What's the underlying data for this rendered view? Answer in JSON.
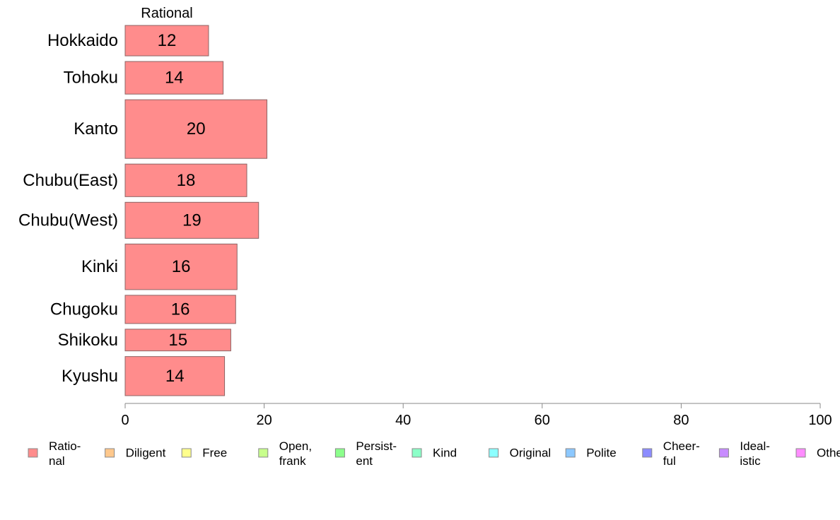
{
  "chart_data": {
    "type": "bar",
    "orientation": "horizontal",
    "column_header": "Rational",
    "categories": [
      "Hokkaido",
      "Tohoku",
      "Kanto",
      "Chubu(East)",
      "Chubu(West)",
      "Kinki",
      "Chugoku",
      "Shikoku",
      "Kyushu"
    ],
    "series": [
      {
        "name": "Rational",
        "values": [
          12,
          14,
          20,
          18,
          19,
          16,
          16,
          15,
          14
        ]
      }
    ],
    "row_weights": [
      0.7,
      0.75,
      1.35,
      0.75,
      0.83,
      1.05,
      0.65,
      0.5,
      0.9
    ],
    "display_values": [
      12.0,
      14.1,
      20.4,
      17.5,
      19.2,
      16.1,
      15.9,
      15.2,
      14.3
    ],
    "xlim": [
      0,
      100
    ],
    "x_ticks": [
      0,
      20,
      40,
      60,
      80,
      100
    ],
    "xlabel": "",
    "ylabel": "",
    "grid": false,
    "legend_position": "bottom",
    "legend": [
      {
        "lines": [
          "Ratio-",
          "nal"
        ],
        "color": "#ff8c8c"
      },
      {
        "lines": [
          "Diligent"
        ],
        "color": "#ffc88c"
      },
      {
        "lines": [
          "Free"
        ],
        "color": "#ffff8c"
      },
      {
        "lines": [
          "Open,",
          "frank"
        ],
        "color": "#c8ff8c"
      },
      {
        "lines": [
          "Persist-",
          "ent"
        ],
        "color": "#8cff8c"
      },
      {
        "lines": [
          "Kind"
        ],
        "color": "#8cffc8"
      },
      {
        "lines": [
          "Original"
        ],
        "color": "#8cffff"
      },
      {
        "lines": [
          "Polite"
        ],
        "color": "#8cc8ff"
      },
      {
        "lines": [
          "Cheer-",
          "ful"
        ],
        "color": "#8c8cff"
      },
      {
        "lines": [
          "Ideal-",
          "istic"
        ],
        "color": "#c88cff"
      },
      {
        "lines": [
          "Others"
        ],
        "color": "#ff8cff"
      }
    ],
    "bar_color": "#ff8c8c",
    "bar_stroke": "#8c6464",
    "axis_color": "#888888"
  }
}
